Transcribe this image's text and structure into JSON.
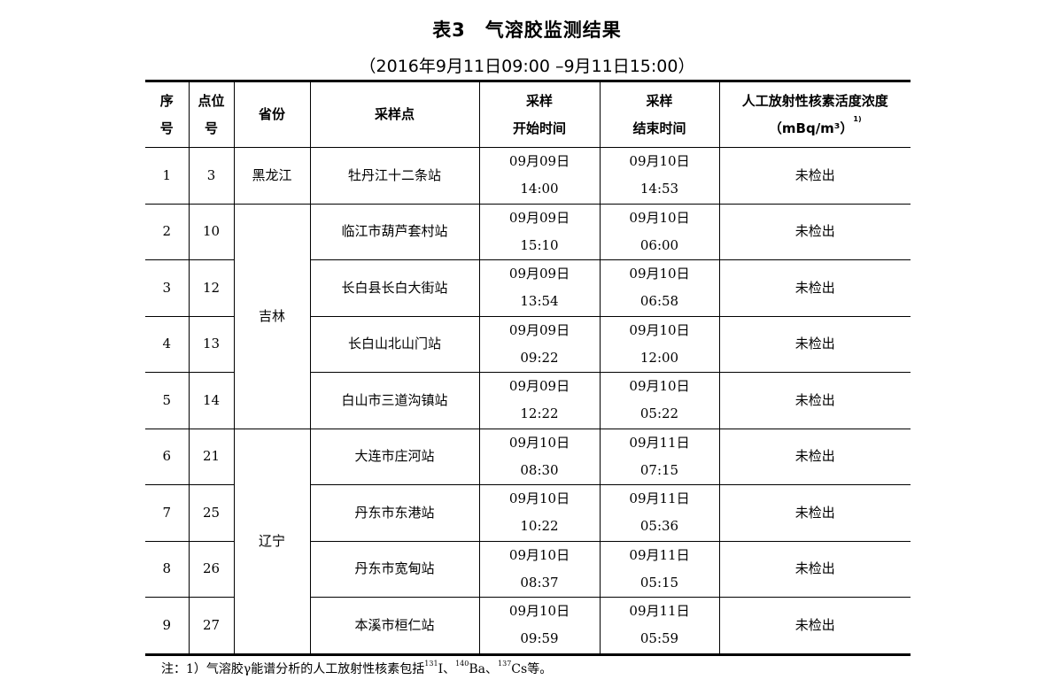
{
  "title": "表3　气溶胶监测结果",
  "subtitle": "（2016年9月11日09:00 –9月11日15:00）",
  "headers": {
    "no_1": "序",
    "no_2": "号",
    "site_1": "点位",
    "site_2": "号",
    "province": "省份",
    "station": "采样点",
    "start_1": "采样",
    "start_2": "开始时间",
    "end_1": "采样",
    "end_2": "结束时间",
    "conc_1": "人工放射性核素活度浓度",
    "conc_2": "（mBq/m³）",
    "conc_sup": "1)"
  },
  "groups": [
    {
      "province": "黑龙江",
      "rows": [
        {
          "no": "1",
          "site": "3",
          "station": "牡丹江十二条站",
          "start_date": "09月09日",
          "start_time": "14:00",
          "end_date": "09月10日",
          "end_time": "14:53",
          "result": "未检出"
        }
      ]
    },
    {
      "province": "吉林",
      "rows": [
        {
          "no": "2",
          "site": "10",
          "station": "临江市葫芦套村站",
          "start_date": "09月09日",
          "start_time": "15:10",
          "end_date": "09月10日",
          "end_time": "06:00",
          "result": "未检出"
        },
        {
          "no": "3",
          "site": "12",
          "station": "长白县长白大街站",
          "start_date": "09月09日",
          "start_time": "13:54",
          "end_date": "09月10日",
          "end_time": "06:58",
          "result": "未检出"
        },
        {
          "no": "4",
          "site": "13",
          "station": "长白山北山门站",
          "start_date": "09月09日",
          "start_time": "09:22",
          "end_date": "09月10日",
          "end_time": "12:00",
          "result": "未检出"
        },
        {
          "no": "5",
          "site": "14",
          "station": "白山市三道沟镇站",
          "start_date": "09月09日",
          "start_time": "12:22",
          "end_date": "09月10日",
          "end_time": "05:22",
          "result": "未检出"
        }
      ]
    },
    {
      "province": "辽宁",
      "rows": [
        {
          "no": "6",
          "site": "21",
          "station": "大连市庄河站",
          "start_date": "09月10日",
          "start_time": "08:30",
          "end_date": "09月11日",
          "end_time": "07:15",
          "result": "未检出"
        },
        {
          "no": "7",
          "site": "25",
          "station": "丹东市东港站",
          "start_date": "09月10日",
          "start_time": "10:22",
          "end_date": "09月11日",
          "end_time": "05:36",
          "result": "未检出"
        },
        {
          "no": "8",
          "site": "26",
          "station": "丹东市宽甸站",
          "start_date": "09月10日",
          "start_time": "08:37",
          "end_date": "09月11日",
          "end_time": "05:15",
          "result": "未检出"
        },
        {
          "no": "9",
          "site": "27",
          "station": "本溪市桓仁站",
          "start_date": "09月10日",
          "start_time": "09:59",
          "end_date": "09月11日",
          "end_time": "05:59",
          "result": "未检出"
        }
      ]
    }
  ],
  "note": {
    "prefix": "注：1）气溶胶γ能谱分析的人工放射性核素包括",
    "n1_mass": "131",
    "n1": "I、",
    "n2_mass": "140",
    "n2": "Ba、",
    "n3_mass": "137",
    "n3": "Cs等。"
  }
}
